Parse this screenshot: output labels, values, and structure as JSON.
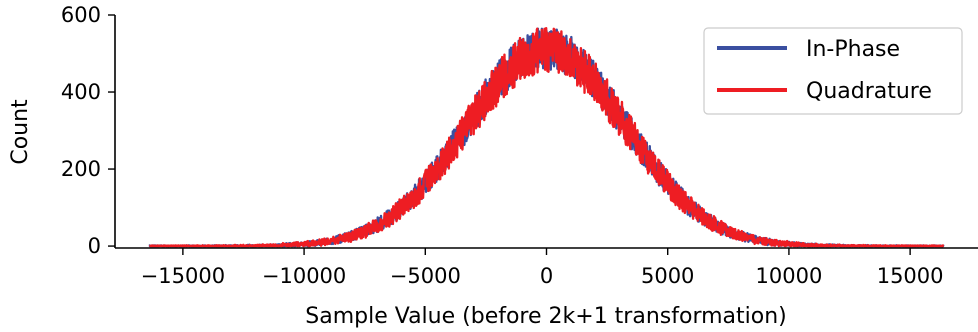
{
  "chart_data": {
    "type": "line",
    "title": "",
    "xlabel": "Sample Value (before 2k+1 transformation)",
    "ylabel": "Count",
    "xlim": [
      -17800,
      17800
    ],
    "ylim": [
      -5,
      600
    ],
    "xticks": [
      -15000,
      -10000,
      -5000,
      0,
      5000,
      10000,
      15000
    ],
    "xtick_labels": [
      "−15000",
      "−10000",
      "−5000",
      "0",
      "5000",
      "10000",
      "15000"
    ],
    "yticks": [
      0,
      200,
      400,
      600
    ],
    "ytick_labels": [
      "0",
      "200",
      "400",
      "600"
    ],
    "grid": false,
    "legend_position": "top-right",
    "x_range": [
      -16384,
      16383
    ],
    "series": [
      {
        "name": "In-Phase",
        "color": "#3a4fa0",
        "peak_count": 570,
        "center": 0,
        "stddev": 3300,
        "noise_amplitude": 50
      },
      {
        "name": "Quadrature",
        "color": "#ee1d23",
        "peak_count": 565,
        "center": 0,
        "stddev": 3300,
        "noise_amplitude": 55
      }
    ]
  }
}
